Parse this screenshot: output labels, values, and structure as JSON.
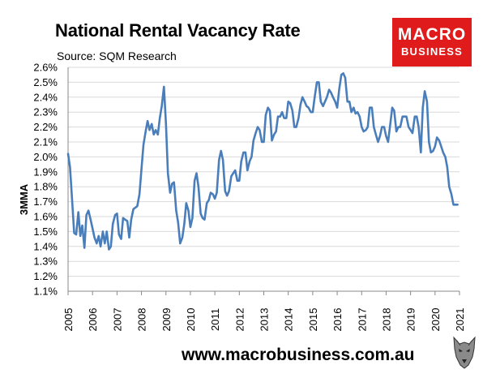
{
  "header": {
    "title": "National Rental Vacancy Rate",
    "source": "Source: SQM Research"
  },
  "logo": {
    "line1": "MACRO",
    "line2": "BUSINESS",
    "color": "#e01b1b"
  },
  "footer": {
    "url": "www.macrobusiness.com.au",
    "mascot_icon": "wolf-mascot-icon"
  },
  "chart_data": {
    "type": "line",
    "title": "National Rental Vacancy Rate",
    "ylabel": "3MMA",
    "xlabel": "",
    "ylim": [
      1.1,
      2.6
    ],
    "xlim": [
      2005,
      2021
    ],
    "y_ticks": [
      "1.1%",
      "1.2%",
      "1.3%",
      "1.4%",
      "1.5%",
      "1.6%",
      "1.7%",
      "1.8%",
      "1.9%",
      "2.0%",
      "2.1%",
      "2.2%",
      "2.3%",
      "2.4%",
      "2.5%",
      "2.6%"
    ],
    "x_ticks": [
      "2005",
      "2006",
      "2007",
      "2008",
      "2009",
      "2010",
      "2011",
      "2012",
      "2013",
      "2014",
      "2015",
      "2016",
      "2017",
      "2018",
      "2019",
      "2020",
      "2021"
    ],
    "grid": true,
    "line_color": "#4a7ebb",
    "series": [
      {
        "x": [
          2005.0,
          2005.08,
          2005.17,
          2005.25,
          2005.33,
          2005.42,
          2005.5,
          2005.58,
          2005.67,
          2005.75,
          2005.83,
          2005.92,
          2006.0,
          2006.08,
          2006.17,
          2006.25,
          2006.33,
          2006.42,
          2006.5,
          2006.58,
          2006.67,
          2006.75,
          2006.83,
          2006.92,
          2007.0,
          2007.08,
          2007.17,
          2007.25,
          2007.33,
          2007.42,
          2007.5,
          2007.58,
          2007.67,
          2007.75,
          2007.83,
          2007.92,
          2008.0,
          2008.08,
          2008.17,
          2008.25,
          2008.33,
          2008.42,
          2008.5,
          2008.58,
          2008.67,
          2008.75,
          2008.83,
          2008.92,
          2009.0,
          2009.08,
          2009.17,
          2009.25,
          2009.33,
          2009.42,
          2009.5,
          2009.58,
          2009.67,
          2009.75,
          2009.83,
          2009.92,
          2010.0,
          2010.08,
          2010.17,
          2010.25,
          2010.33,
          2010.42,
          2010.5,
          2010.58,
          2010.67,
          2010.75,
          2010.83,
          2010.92,
          2011.0,
          2011.08,
          2011.17,
          2011.25,
          2011.33,
          2011.42,
          2011.5,
          2011.58,
          2011.67,
          2011.75,
          2011.83,
          2011.92,
          2012.0,
          2012.08,
          2012.17,
          2012.25,
          2012.33,
          2012.42,
          2012.5,
          2012.58,
          2012.67,
          2012.75,
          2012.83,
          2012.92,
          2013.0,
          2013.08,
          2013.17,
          2013.25,
          2013.33,
          2013.42,
          2013.5,
          2013.58,
          2013.67,
          2013.75,
          2013.83,
          2013.92,
          2014.0,
          2014.08,
          2014.17,
          2014.25,
          2014.33,
          2014.42,
          2014.5,
          2014.58,
          2014.67,
          2014.75,
          2014.83,
          2014.92,
          2015.0,
          2015.08,
          2015.17,
          2015.25,
          2015.33,
          2015.42,
          2015.5,
          2015.58,
          2015.67,
          2015.75,
          2015.83,
          2015.92,
          2016.0,
          2016.08,
          2016.17,
          2016.25,
          2016.33,
          2016.42,
          2016.5,
          2016.58,
          2016.67,
          2016.75,
          2016.83,
          2016.92,
          2017.0,
          2017.08,
          2017.17,
          2017.25,
          2017.33,
          2017.42,
          2017.5,
          2017.58,
          2017.67,
          2017.75,
          2017.83,
          2017.92,
          2018.0,
          2018.08,
          2018.17,
          2018.25,
          2018.33,
          2018.42,
          2018.5,
          2018.58,
          2018.67,
          2018.75,
          2018.83,
          2018.92,
          2019.0,
          2019.08,
          2019.17,
          2019.25,
          2019.33,
          2019.42,
          2019.5,
          2019.58,
          2019.67,
          2019.75,
          2019.83,
          2019.92,
          2020.0,
          2020.08,
          2020.17,
          2020.25,
          2020.33,
          2020.42,
          2020.5,
          2020.58,
          2020.67,
          2020.75,
          2020.83,
          2020.92
        ],
        "values": [
          2.02,
          1.93,
          1.7,
          1.49,
          1.48,
          1.63,
          1.47,
          1.54,
          1.39,
          1.61,
          1.64,
          1.58,
          1.52,
          1.46,
          1.42,
          1.47,
          1.4,
          1.5,
          1.42,
          1.5,
          1.38,
          1.4,
          1.55,
          1.61,
          1.62,
          1.48,
          1.45,
          1.59,
          1.58,
          1.57,
          1.46,
          1.58,
          1.65,
          1.66,
          1.67,
          1.75,
          1.92,
          2.08,
          2.17,
          2.24,
          2.18,
          2.22,
          2.15,
          2.18,
          2.15,
          2.26,
          2.34,
          2.47,
          2.22,
          1.89,
          1.76,
          1.82,
          1.83,
          1.64,
          1.56,
          1.42,
          1.46,
          1.55,
          1.69,
          1.64,
          1.53,
          1.59,
          1.84,
          1.89,
          1.8,
          1.62,
          1.59,
          1.58,
          1.69,
          1.71,
          1.76,
          1.75,
          1.72,
          1.76,
          1.98,
          2.04,
          1.98,
          1.77,
          1.74,
          1.77,
          1.87,
          1.89,
          1.91,
          1.84,
          1.84,
          1.97,
          2.03,
          2.03,
          1.91,
          1.97,
          2.0,
          2.11,
          2.16,
          2.2,
          2.18,
          2.1,
          2.1,
          2.28,
          2.33,
          2.31,
          2.11,
          2.15,
          2.17,
          2.27,
          2.27,
          2.3,
          2.26,
          2.26,
          2.37,
          2.36,
          2.31,
          2.2,
          2.2,
          2.26,
          2.35,
          2.4,
          2.37,
          2.34,
          2.33,
          2.3,
          2.3,
          2.4,
          2.5,
          2.5,
          2.37,
          2.34,
          2.37,
          2.4,
          2.45,
          2.43,
          2.4,
          2.37,
          2.33,
          2.45,
          2.55,
          2.56,
          2.53,
          2.37,
          2.37,
          2.3,
          2.33,
          2.29,
          2.3,
          2.27,
          2.2,
          2.17,
          2.18,
          2.2,
          2.33,
          2.33,
          2.2,
          2.15,
          2.1,
          2.14,
          2.2,
          2.2,
          2.14,
          2.1,
          2.22,
          2.33,
          2.31,
          2.17,
          2.2,
          2.2,
          2.27,
          2.27,
          2.27,
          2.2,
          2.18,
          2.16,
          2.27,
          2.27,
          2.2,
          2.03,
          2.33,
          2.44,
          2.37,
          2.1,
          2.03,
          2.04,
          2.07,
          2.13,
          2.11,
          2.07,
          2.03,
          2.0,
          1.93,
          1.8,
          1.75,
          1.68,
          1.68,
          1.68
        ]
      }
    ]
  }
}
